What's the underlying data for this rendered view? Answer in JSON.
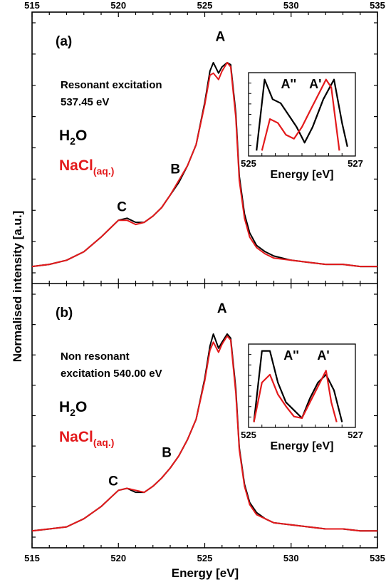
{
  "chart_data": {
    "type": "line",
    "xlabel": "Energy [eV]",
    "ylabel": "Normalised intensity [a.u.]",
    "xlim": [
      515,
      535
    ],
    "xticks": [
      515,
      520,
      525,
      530,
      535
    ],
    "colors": {
      "H2O": "#000000",
      "NaCl": "#e31a1c"
    },
    "legend_entries": [
      {
        "key": "H2O",
        "main": "H",
        "sub": "2",
        "tail": "O",
        "color": "#000000"
      },
      {
        "key": "NaCl",
        "main": "NaCl",
        "sub": "(aq.)",
        "tail": "",
        "color": "#e31a1c"
      }
    ],
    "panels": [
      {
        "label": "(a)",
        "annotation_lines": [
          "Resonant excitation",
          "537.45 eV"
        ],
        "peak_labels": [
          {
            "text": "A",
            "x": 525.9,
            "y": 1.08
          },
          {
            "text": "B",
            "x": 523.3,
            "y": 0.45
          },
          {
            "text": "C",
            "x": 520.2,
            "y": 0.27
          }
        ],
        "series": [
          {
            "name": "H2O",
            "x": [
              515,
              516,
              517,
              518,
              519,
              519.5,
              520,
              520.5,
              521,
              521.5,
              522,
              522.5,
              523,
              523.5,
              524,
              524.5,
              525,
              525.3,
              525.5,
              525.8,
              526,
              526.3,
              526.5,
              526.8,
              527,
              527.3,
              527.6,
              528,
              528.5,
              529,
              530,
              531,
              532,
              533,
              534,
              535
            ],
            "values": [
              0.02,
              0.03,
              0.05,
              0.09,
              0.16,
              0.2,
              0.24,
              0.25,
              0.23,
              0.23,
              0.26,
              0.3,
              0.36,
              0.42,
              0.5,
              0.6,
              0.8,
              0.95,
              0.99,
              0.94,
              0.97,
              0.99,
              0.98,
              0.75,
              0.45,
              0.27,
              0.18,
              0.12,
              0.09,
              0.07,
              0.05,
              0.04,
              0.03,
              0.03,
              0.02,
              0.02
            ]
          },
          {
            "name": "NaCl(aq.)",
            "x": [
              515,
              516,
              517,
              518,
              519,
              519.5,
              520,
              520.5,
              521,
              521.5,
              522,
              522.5,
              523,
              523.5,
              524,
              524.5,
              525,
              525.3,
              525.5,
              525.8,
              526,
              526.3,
              526.5,
              526.8,
              527,
              527.3,
              527.6,
              528,
              528.5,
              529,
              530,
              531,
              532,
              533,
              534,
              535
            ],
            "values": [
              0.02,
              0.03,
              0.05,
              0.09,
              0.16,
              0.2,
              0.24,
              0.24,
              0.22,
              0.23,
              0.26,
              0.3,
              0.36,
              0.43,
              0.5,
              0.6,
              0.79,
              0.93,
              0.94,
              0.91,
              0.95,
              0.99,
              0.97,
              0.73,
              0.43,
              0.25,
              0.16,
              0.11,
              0.08,
              0.06,
              0.05,
              0.04,
              0.03,
              0.03,
              0.02,
              0.02
            ]
          }
        ],
        "inset": {
          "xlim": [
            525,
            527
          ],
          "xticks": [
            525,
            527
          ],
          "xlabel": "Energy [eV]",
          "peak_labels": [
            {
              "text": "A''",
              "x": 525.75
            },
            {
              "text": "A'",
              "x": 526.25
            }
          ],
          "series": [
            {
              "name": "H2O",
              "x": [
                525.15,
                525.3,
                525.45,
                525.6,
                525.75,
                525.9,
                526.05,
                526.2,
                526.4,
                526.6,
                526.75,
                526.85
              ],
              "values": [
                0.05,
                0.95,
                0.7,
                0.65,
                0.5,
                0.35,
                0.15,
                0.35,
                0.7,
                0.95,
                0.4,
                0.1
              ]
            },
            {
              "name": "NaCl(aq.)",
              "x": [
                525.25,
                525.4,
                525.55,
                525.7,
                525.85,
                526.0,
                526.15,
                526.3,
                526.45,
                526.55,
                526.7
              ],
              "values": [
                0.05,
                0.45,
                0.4,
                0.25,
                0.2,
                0.35,
                0.55,
                0.75,
                0.95,
                0.85,
                0.05
              ]
            }
          ]
        }
      },
      {
        "label": "(b)",
        "annotation_lines": [
          "Non resonant",
          "excitation 540.00 eV"
        ],
        "peak_labels": [
          {
            "text": "A",
            "x": 526.0,
            "y": 1.08
          },
          {
            "text": "B",
            "x": 522.8,
            "y": 0.37
          },
          {
            "text": "C",
            "x": 519.7,
            "y": 0.23
          }
        ],
        "series": [
          {
            "name": "H2O",
            "x": [
              515,
              516,
              517,
              518,
              519,
              519.5,
              520,
              520.5,
              521,
              521.5,
              522,
              522.5,
              523,
              523.5,
              524,
              524.5,
              525,
              525.3,
              525.5,
              525.8,
              526,
              526.3,
              526.5,
              526.8,
              527,
              527.3,
              527.6,
              528,
              528.5,
              529,
              530,
              531,
              532,
              533,
              534,
              535
            ],
            "values": [
              0.02,
              0.03,
              0.04,
              0.08,
              0.14,
              0.18,
              0.22,
              0.23,
              0.21,
              0.21,
              0.24,
              0.28,
              0.33,
              0.39,
              0.47,
              0.57,
              0.77,
              0.93,
              0.99,
              0.92,
              0.95,
              0.99,
              0.97,
              0.72,
              0.43,
              0.25,
              0.16,
              0.11,
              0.08,
              0.06,
              0.05,
              0.04,
              0.03,
              0.03,
              0.02,
              0.02
            ]
          },
          {
            "name": "NaCl(aq.)",
            "x": [
              515,
              516,
              517,
              518,
              519,
              519.5,
              520,
              520.5,
              521,
              521.5,
              522,
              522.5,
              523,
              523.5,
              524,
              524.5,
              525,
              525.3,
              525.5,
              525.8,
              526,
              526.3,
              526.5,
              526.8,
              527,
              527.3,
              527.6,
              528,
              528.5,
              529,
              530,
              531,
              532,
              533,
              534,
              535
            ],
            "values": [
              0.02,
              0.03,
              0.04,
              0.08,
              0.14,
              0.18,
              0.22,
              0.23,
              0.22,
              0.21,
              0.24,
              0.28,
              0.33,
              0.39,
              0.47,
              0.57,
              0.76,
              0.91,
              0.95,
              0.9,
              0.94,
              0.98,
              0.96,
              0.7,
              0.42,
              0.24,
              0.15,
              0.1,
              0.08,
              0.06,
              0.05,
              0.04,
              0.03,
              0.03,
              0.02,
              0.02
            ]
          }
        ],
        "inset": {
          "xlim": [
            525,
            527
          ],
          "xticks": [
            525,
            527
          ],
          "xlabel": "Energy [eV]",
          "peak_labels": [
            {
              "text": "A''",
              "x": 525.8
            },
            {
              "text": "A'",
              "x": 526.4
            }
          ],
          "series": [
            {
              "name": "H2O",
              "x": [
                525.1,
                525.25,
                525.4,
                525.55,
                525.7,
                525.85,
                526.0,
                526.15,
                526.3,
                526.45,
                526.6,
                526.75
              ],
              "values": [
                0.05,
                0.95,
                0.95,
                0.55,
                0.3,
                0.2,
                0.1,
                0.35,
                0.55,
                0.65,
                0.45,
                0.05
              ]
            },
            {
              "name": "NaCl(aq.)",
              "x": [
                525.1,
                525.25,
                525.4,
                525.55,
                525.7,
                525.85,
                526.0,
                526.15,
                526.3,
                526.45,
                526.55,
                526.65
              ],
              "values": [
                0.05,
                0.55,
                0.65,
                0.4,
                0.25,
                0.12,
                0.1,
                0.3,
                0.5,
                0.7,
                0.3,
                0.05
              ]
            }
          ]
        }
      }
    ]
  }
}
